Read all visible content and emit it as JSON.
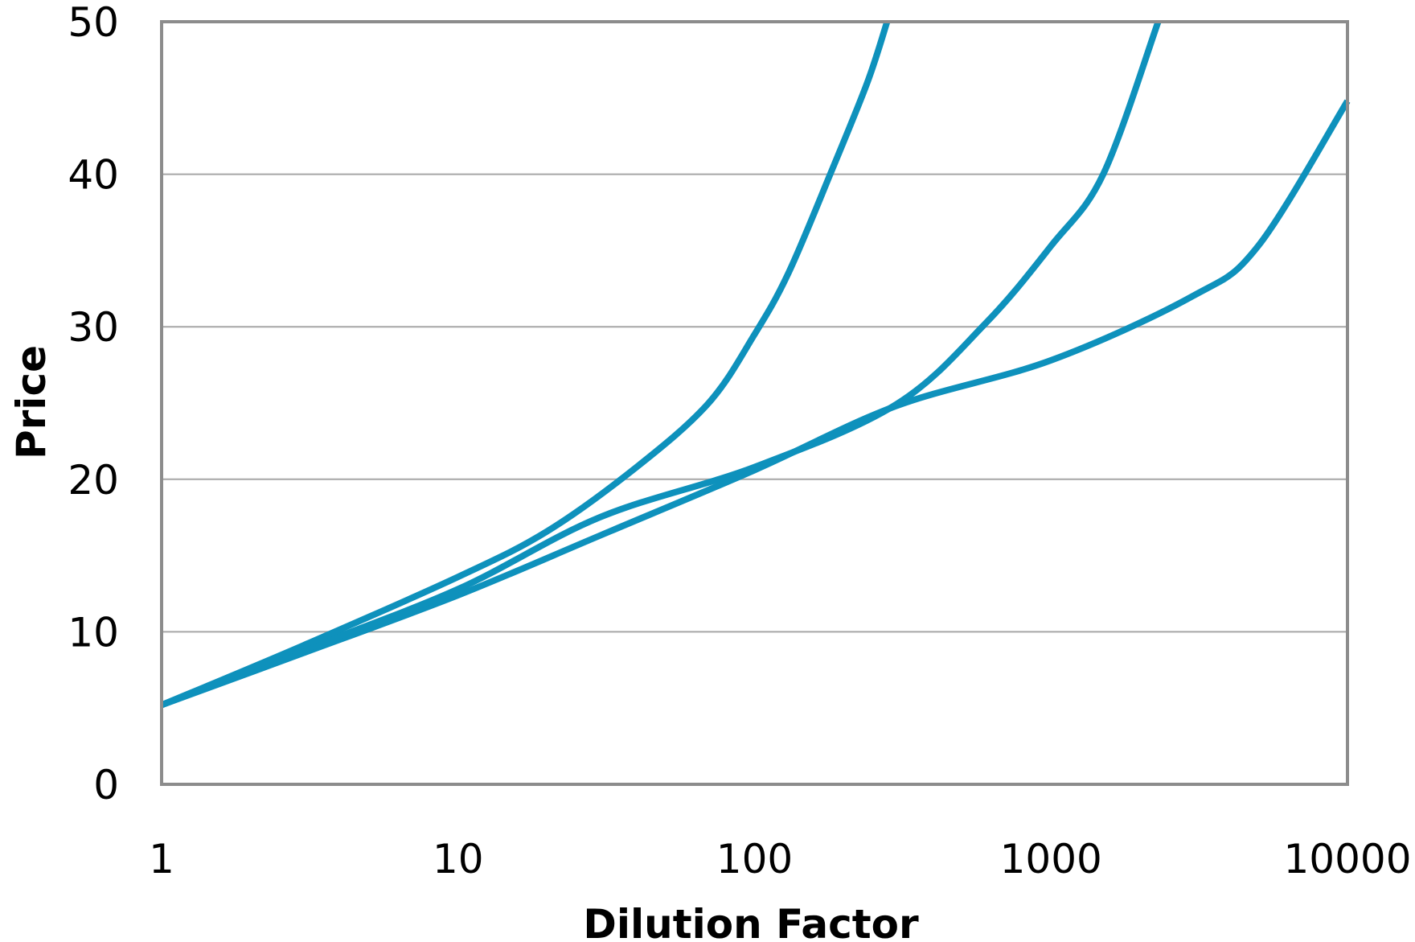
{
  "chart_data": {
    "type": "line",
    "title": "",
    "xlabel": "Dilution Factor",
    "ylabel": "Price",
    "x_scale": "log",
    "xlim": [
      1,
      10000
    ],
    "ylim": [
      0,
      50
    ],
    "x_ticks": [
      1,
      10,
      100,
      1000,
      10000
    ],
    "x_tick_labels": [
      "1",
      "10",
      "100",
      "1000",
      "10000"
    ],
    "y_ticks": [
      0,
      10,
      20,
      30,
      40,
      50
    ],
    "y_tick_labels": [
      "0",
      "10",
      "20",
      "30",
      "40",
      "50"
    ],
    "grid": "horizontal",
    "legend": "none",
    "colors": {
      "line": "#0E91BC",
      "grid": "#A6A6A6",
      "frame": "#8C8C8C"
    },
    "series": [
      {
        "values": [
          [
            1,
            5.2
          ],
          [
            3,
            8.6
          ],
          [
            10,
            12.4
          ],
          [
            30,
            16.3
          ],
          [
            100,
            20.6
          ],
          [
            300,
            24.8
          ],
          [
            1000,
            27.8
          ],
          [
            3000,
            32.0
          ],
          [
            5000,
            35.3
          ],
          [
            10000,
            44.8
          ]
        ]
      },
      {
        "values": [
          [
            1,
            5.2
          ],
          [
            3,
            8.8
          ],
          [
            10,
            12.8
          ],
          [
            30,
            17.5
          ],
          [
            100,
            20.8
          ],
          [
            300,
            24.9
          ],
          [
            600,
            30.2
          ],
          [
            1000,
            35.3
          ],
          [
            1500,
            40.0
          ],
          [
            2300,
            50.0
          ]
        ]
      },
      {
        "values": [
          [
            1,
            5.2
          ],
          [
            3,
            9.1
          ],
          [
            10,
            13.6
          ],
          [
            20,
            16.6
          ],
          [
            40,
            20.8
          ],
          [
            70,
            25.0
          ],
          [
            100,
            29.5
          ],
          [
            130,
            33.5
          ],
          [
            180,
            40.0
          ],
          [
            240,
            46.0
          ],
          [
            280,
            50.0
          ]
        ]
      }
    ]
  }
}
